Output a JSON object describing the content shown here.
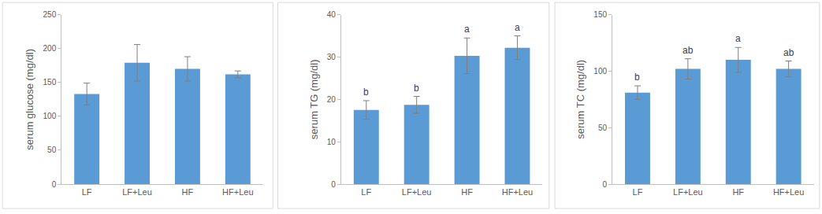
{
  "chart_data": [
    {
      "type": "bar",
      "y_label": "serum glucose (mg/dl)",
      "categories": [
        "LF",
        "LF+Leu",
        "HF",
        "HF+Leu"
      ],
      "values": [
        133,
        179,
        170,
        162
      ],
      "errors": [
        16,
        27,
        18,
        5
      ],
      "color": "#5b9bd5",
      "ylim": [
        0,
        250
      ],
      "yticks": [
        0,
        50,
        100,
        150,
        200,
        250
      ],
      "grid": false
    },
    {
      "type": "bar",
      "y_label": "serum TG (mg/dl)",
      "categories": [
        "LF",
        "LF+Leu",
        "HF",
        "HF+Leu"
      ],
      "values": [
        17.5,
        18.7,
        30.3,
        32.2
      ],
      "errors": [
        2.2,
        2.0,
        4.2,
        2.8
      ],
      "annotations": [
        "b",
        "b",
        "a",
        "a"
      ],
      "color": "#5b9bd5",
      "ylim": [
        0,
        40
      ],
      "yticks": [
        0,
        10,
        20,
        30,
        40
      ],
      "grid": false
    },
    {
      "type": "bar",
      "y_label": "serum TC (mg/dl)",
      "categories": [
        "LF",
        "LF+Leu",
        "HF",
        "HF+Leu"
      ],
      "values": [
        81,
        102,
        110,
        102
      ],
      "errors": [
        6,
        9,
        11,
        7
      ],
      "annotations": [
        "b",
        "ab",
        "a",
        "ab"
      ],
      "color": "#5b9bd5",
      "ylim": [
        0,
        150
      ],
      "yticks": [
        0,
        50,
        100,
        150
      ],
      "grid": false
    }
  ]
}
